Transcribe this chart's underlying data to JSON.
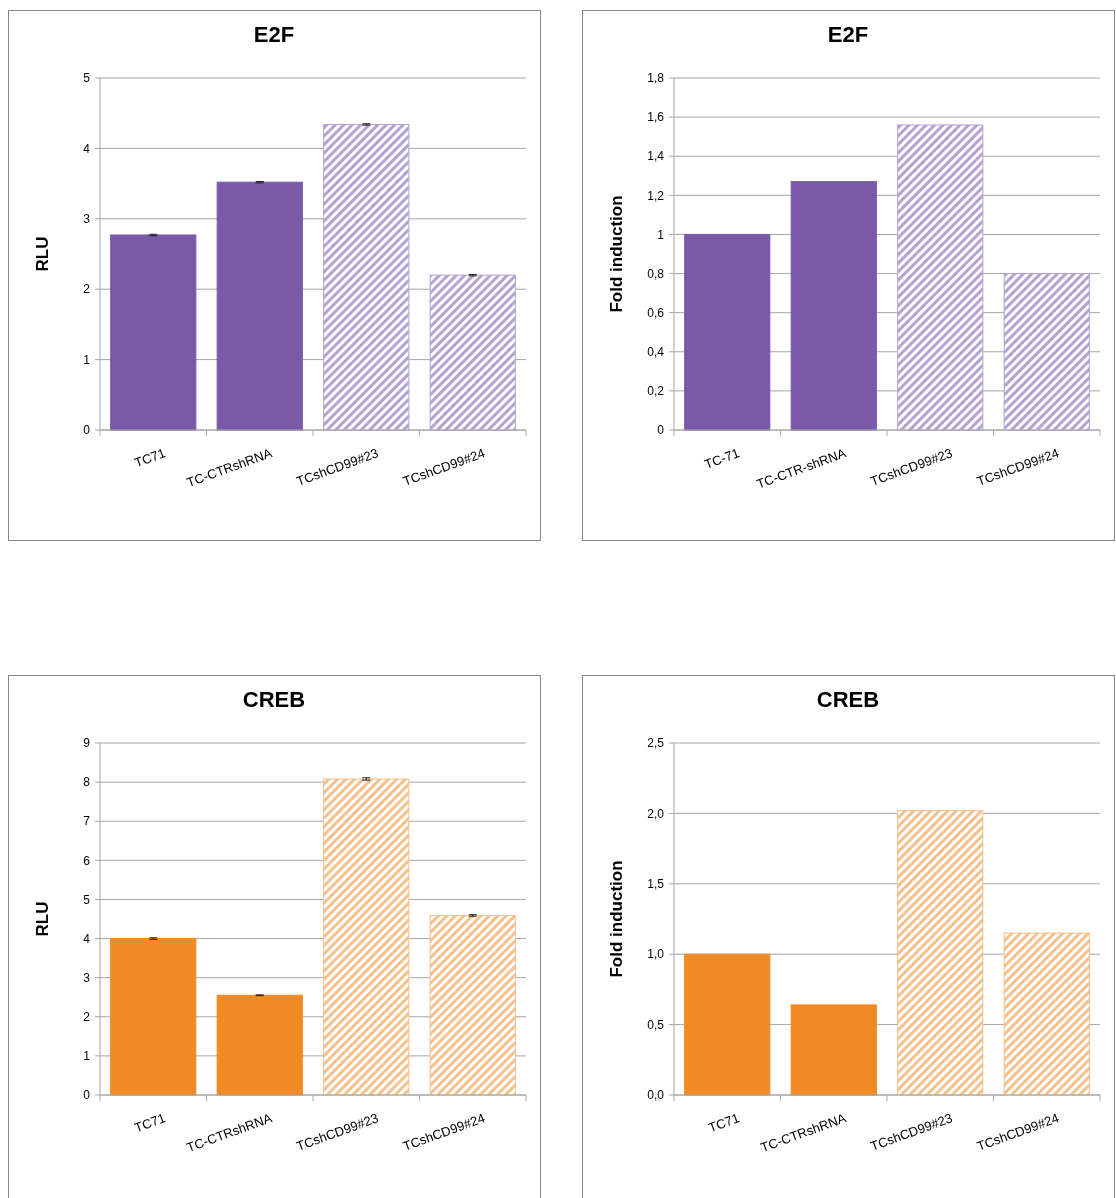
{
  "chart_data": [
    {
      "type": "bar",
      "title": "E2F",
      "ylabel": "RLU",
      "categories": [
        "TC71",
        "TC-CTRshRNA",
        "TCshCD99#23",
        "TCshCD99#24"
      ],
      "values": [
        2.77,
        3.52,
        4.34,
        2.2
      ],
      "errors": [
        0.01,
        0.01,
        0.01,
        0.01
      ],
      "colors": [
        "#7a59a8",
        "#7a59a8",
        "#b4a2d2",
        "#b4a2d2"
      ],
      "ylim": [
        0,
        5
      ],
      "yticks": [
        0,
        1,
        2,
        3,
        4,
        5
      ],
      "grid": "y"
    },
    {
      "type": "bar",
      "title": "E2F",
      "ylabel": "Fold induction",
      "categories": [
        "TC-71",
        "TC-CTR-shRNA",
        "TCshCD99#23",
        "TCshCD99#24"
      ],
      "values": [
        1.0,
        1.27,
        1.56,
        0.8
      ],
      "colors": [
        "#7a59a8",
        "#7a59a8",
        "#b4a2d2",
        "#b4a2d2"
      ],
      "ylim": [
        0,
        1.8
      ],
      "yticks": [
        0,
        {
          "value": 0.2,
          "label": "0,2"
        },
        {
          "value": 0.4,
          "label": "0,4"
        },
        {
          "value": 0.6,
          "label": "0,6"
        },
        {
          "value": 0.8,
          "label": "0,8"
        },
        1,
        {
          "value": 1.2,
          "label": "1,2"
        },
        {
          "value": 1.4,
          "label": "1,4"
        },
        {
          "value": 1.6,
          "label": "1,6"
        },
        {
          "value": 1.8,
          "label": "1,8"
        }
      ],
      "grid": "y"
    },
    {
      "type": "bar",
      "title": "CREB",
      "ylabel": "RLU",
      "categories": [
        "TC71",
        "TC-CTRshRNA",
        "TCshCD99#23",
        "TCshCD99#24"
      ],
      "values": [
        4.0,
        2.55,
        8.08,
        4.59
      ],
      "errors": [
        0.02,
        0.01,
        0.03,
        0.02
      ],
      "colors": [
        "#f08a24",
        "#f08a24",
        "#f5c08a",
        "#f5c08a"
      ],
      "ylim": [
        0,
        9
      ],
      "yticks": [
        0,
        1,
        2,
        3,
        4,
        5,
        6,
        7,
        8,
        9
      ],
      "grid": "y"
    },
    {
      "type": "bar",
      "title": "CREB",
      "ylabel": "Fold induction",
      "categories": [
        "TC71",
        "TC-CTRshRNA",
        "TCshCD99#23",
        "TCshCD99#24"
      ],
      "values": [
        1.0,
        0.64,
        2.02,
        1.15
      ],
      "colors": [
        "#f08a24",
        "#f08a24",
        "#f5c08a",
        "#f5c08a"
      ],
      "ylim": [
        0,
        2.5
      ],
      "yticks": [
        {
          "value": 0,
          "label": "0,0"
        },
        {
          "value": 0.5,
          "label": "0,5"
        },
        {
          "value": 1,
          "label": "1,0"
        },
        {
          "value": 1.5,
          "label": "1,5"
        },
        {
          "value": 2,
          "label": "2,0"
        },
        {
          "value": 2.5,
          "label": "2,5"
        }
      ],
      "grid": "y"
    }
  ]
}
